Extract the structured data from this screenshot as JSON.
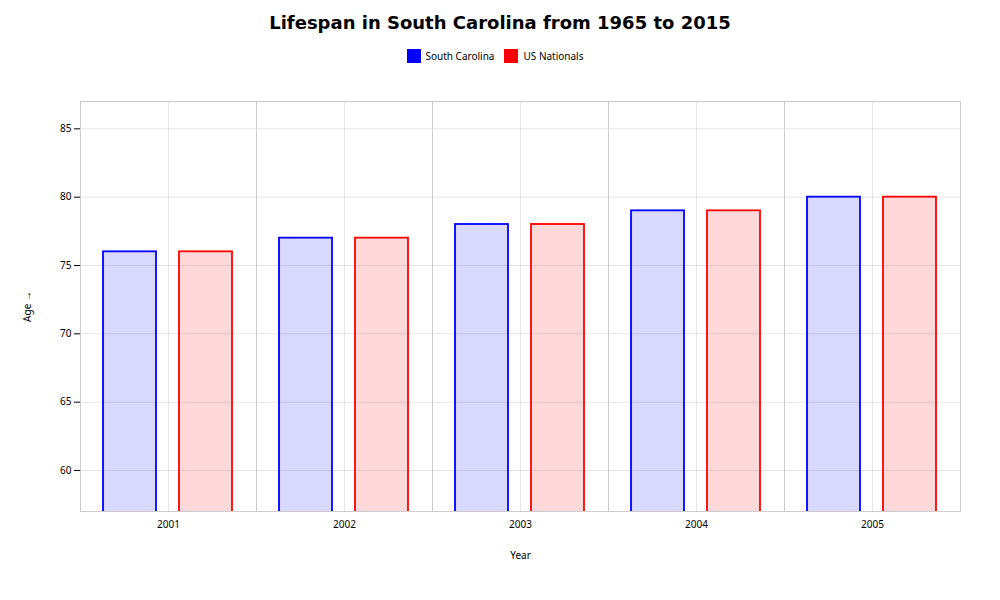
{
  "chart_data": {
    "type": "bar",
    "title": "Lifespan in South Carolina from 1965 to 2015",
    "xlabel": "Year",
    "ylabel": "Age",
    "categories": [
      "2001",
      "2002",
      "2003",
      "2004",
      "2005"
    ],
    "series": [
      {
        "name": "South Carolina",
        "color": "#0000ff",
        "values": [
          76,
          77,
          78,
          79,
          80
        ]
      },
      {
        "name": "US Nationals",
        "color": "#ff0000",
        "values": [
          76,
          77,
          78,
          79,
          80
        ]
      }
    ],
    "ylim": [
      57,
      87
    ],
    "yticks": [
      60,
      65,
      70,
      75,
      80,
      85
    ],
    "grid": true,
    "legend": "top"
  }
}
